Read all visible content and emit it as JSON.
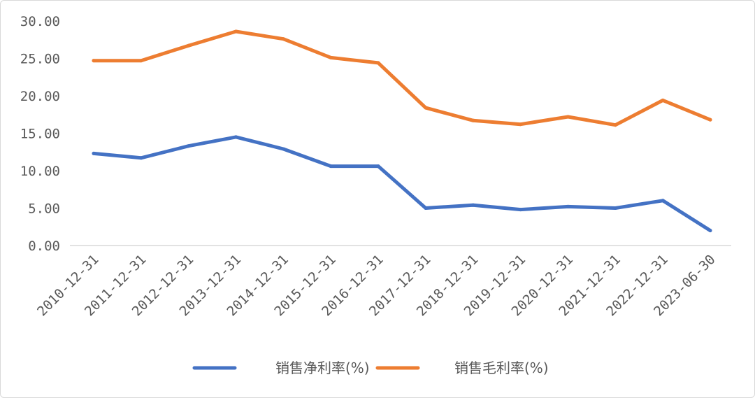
{
  "chart_data": {
    "type": "line",
    "categories": [
      "2010-12-31",
      "2011-12-31",
      "2012-12-31",
      "2013-12-31",
      "2014-12-31",
      "2015-12-31",
      "2016-12-31",
      "2017-12-31",
      "2018-12-31",
      "2019-12-31",
      "2020-12-31",
      "2021-12-31",
      "2022-12-31",
      "2023-06-30"
    ],
    "series": [
      {
        "name": "销售净利率(%)",
        "color": "#4472C4",
        "values": [
          12.3,
          11.7,
          13.3,
          14.5,
          12.9,
          10.6,
          10.6,
          5.0,
          5.4,
          4.8,
          5.2,
          5.0,
          6.0,
          2.0
        ]
      },
      {
        "name": "销售毛利率(%)",
        "color": "#ED7D31",
        "values": [
          24.7,
          24.7,
          26.7,
          28.6,
          27.6,
          25.1,
          24.4,
          18.4,
          16.7,
          16.2,
          17.2,
          16.1,
          19.4,
          16.8
        ]
      }
    ],
    "y_ticks": [
      "0.00",
      "5.00",
      "10.00",
      "15.00",
      "20.00",
      "25.00",
      "30.00"
    ],
    "ylim": [
      0,
      30
    ],
    "grid": false,
    "legend_position": "bottom"
  }
}
